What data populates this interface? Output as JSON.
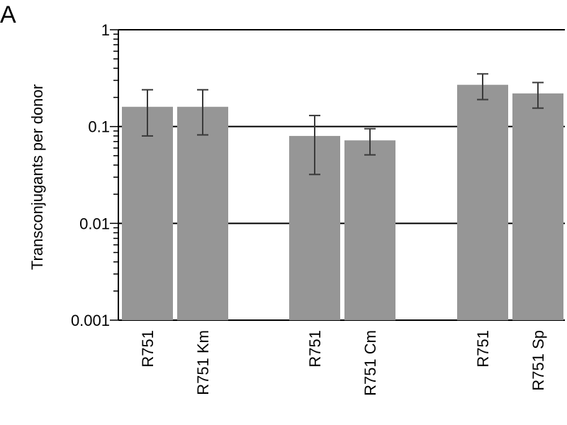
{
  "panel_label": "A",
  "chart_data": {
    "type": "bar",
    "title": "",
    "xlabel": "",
    "ylabel": "Transconjugants per donor",
    "y_scale": "log",
    "ylim": [
      0.001,
      1
    ],
    "yticks": [
      {
        "value": 1,
        "label": "1"
      },
      {
        "value": 0.1,
        "label": "0.1"
      },
      {
        "value": 0.01,
        "label": "0.01"
      },
      {
        "value": 0.001,
        "label": "0.001"
      }
    ],
    "grid": "horizontal lines at major decades",
    "legend": "none",
    "bar_color": "#969696",
    "error_bar_color": "#3a3a3a",
    "categories": [
      "R751",
      "R751 Km",
      "R751",
      "R751 Cm",
      "R751",
      "R751 Sp"
    ],
    "groups": [
      [
        0,
        1
      ],
      [
        2,
        3
      ],
      [
        4,
        5
      ]
    ],
    "values": [
      0.16,
      0.16,
      0.08,
      0.072,
      0.27,
      0.22
    ],
    "error_low": [
      0.08,
      0.082,
      0.032,
      0.051,
      0.19,
      0.155
    ],
    "error_high": [
      0.24,
      0.24,
      0.13,
      0.095,
      0.35,
      0.285
    ]
  }
}
